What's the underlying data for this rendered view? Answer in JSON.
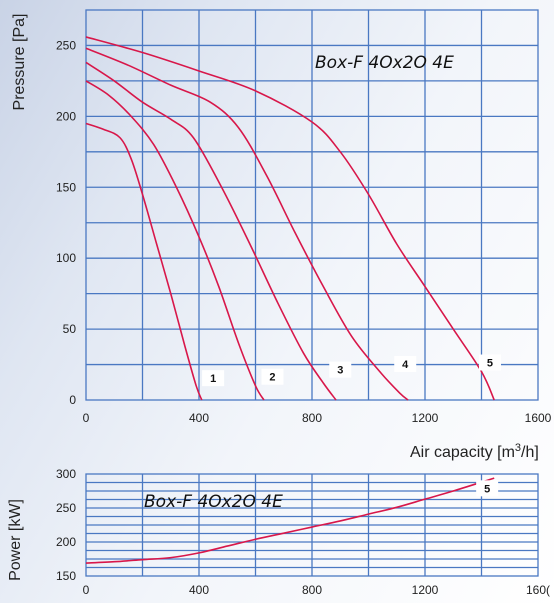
{
  "chart_data": [
    {
      "type": "line",
      "title": "Box-F 4Ox2O 4E",
      "xlabel": "Air capacity [m",
      "xlabel_sup": "3",
      "xlabel_tail": "/h]",
      "ylabel": "Pressure [Pa]",
      "xlim": [
        0,
        1600
      ],
      "ylim": [
        0,
        275
      ],
      "x_ticks": [
        "0",
        "400",
        "800",
        "1200",
        "1600"
      ],
      "y_ticks": [
        "0",
        "50",
        "100",
        "150",
        "200",
        "250"
      ],
      "grid": true,
      "series": [
        {
          "name": "1",
          "label_at": [
            450,
            14
          ],
          "points": [
            [
              0,
              195
            ],
            [
              60,
              191
            ],
            [
              120,
              185
            ],
            [
              160,
              170
            ],
            [
              200,
              145
            ],
            [
              250,
              110
            ],
            [
              300,
              75
            ],
            [
              350,
              38
            ],
            [
              390,
              10
            ],
            [
              410,
              0
            ]
          ]
        },
        {
          "name": "2",
          "label_at": [
            660,
            15
          ],
          "points": [
            [
              0,
              225
            ],
            [
              80,
              215
            ],
            [
              160,
              200
            ],
            [
              240,
              180
            ],
            [
              320,
              150
            ],
            [
              400,
              115
            ],
            [
              470,
              80
            ],
            [
              540,
              40
            ],
            [
              600,
              10
            ],
            [
              630,
              0
            ]
          ]
        },
        {
          "name": "3",
          "label_at": [
            900,
            20
          ],
          "points": [
            [
              0,
              238
            ],
            [
              100,
              225
            ],
            [
              200,
              210
            ],
            [
              300,
              198
            ],
            [
              380,
              185
            ],
            [
              480,
              150
            ],
            [
              580,
              110
            ],
            [
              680,
              68
            ],
            [
              770,
              33
            ],
            [
              840,
              12
            ],
            [
              885,
              0
            ]
          ]
        },
        {
          "name": "4",
          "label_at": [
            1130,
            24
          ],
          "points": [
            [
              0,
              248
            ],
            [
              150,
              236
            ],
            [
              300,
              222
            ],
            [
              440,
              210
            ],
            [
              540,
              192
            ],
            [
              640,
              158
            ],
            [
              740,
              118
            ],
            [
              840,
              80
            ],
            [
              940,
              45
            ],
            [
              1040,
              20
            ],
            [
              1110,
              5
            ],
            [
              1140,
              0
            ]
          ]
        },
        {
          "name": "5",
          "label_at": [
            1430,
            25
          ],
          "points": [
            [
              0,
              256
            ],
            [
              200,
              245
            ],
            [
              400,
              232
            ],
            [
              600,
              218
            ],
            [
              800,
              196
            ],
            [
              900,
              175
            ],
            [
              1000,
              145
            ],
            [
              1100,
              110
            ],
            [
              1200,
              80
            ],
            [
              1300,
              50
            ],
            [
              1400,
              20
            ],
            [
              1445,
              0
            ]
          ]
        }
      ]
    },
    {
      "type": "line",
      "title": "Box-F 4Ox2O 4E",
      "xlabel": "",
      "ylabel": "Power [kW]",
      "xlim": [
        0,
        1600
      ],
      "ylim": [
        150,
        300
      ],
      "x_ticks": [
        "0",
        "400",
        "800",
        "1200",
        "160("
      ],
      "y_ticks": [
        "150",
        "200",
        "250",
        "300"
      ],
      "grid": true,
      "series": [
        {
          "name": "5",
          "label_at": [
            1420,
            276
          ],
          "points": [
            [
              0,
              169
            ],
            [
              100,
              171
            ],
            [
              200,
              174
            ],
            [
              300,
              177
            ],
            [
              400,
              184
            ],
            [
              500,
              194
            ],
            [
              600,
              204
            ],
            [
              700,
              213
            ],
            [
              800,
              222
            ],
            [
              900,
              231
            ],
            [
              1000,
              241
            ],
            [
              1100,
              251
            ],
            [
              1200,
              263
            ],
            [
              1300,
              275
            ],
            [
              1400,
              288
            ],
            [
              1445,
              294
            ]
          ]
        }
      ]
    }
  ]
}
